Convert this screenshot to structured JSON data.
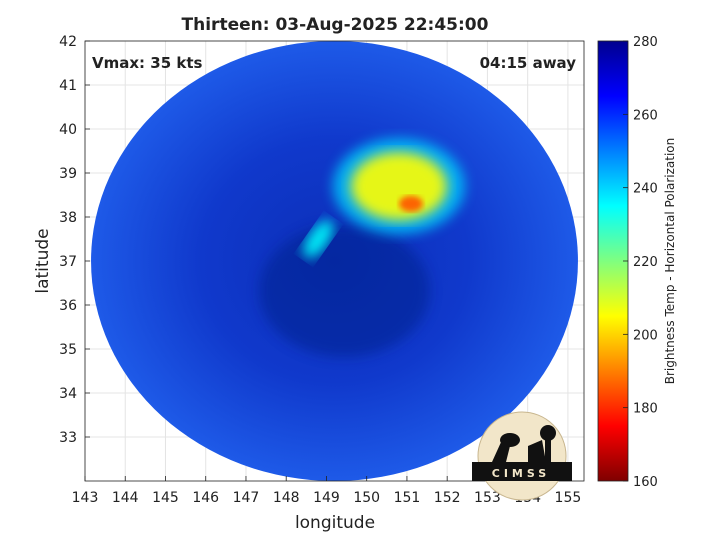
{
  "title": "Thirteen: 03-Aug-2025 22:45:00",
  "vmax_label": "Vmax: 35 kts",
  "away_label": "04:15 away",
  "logo_text": "CIMSS",
  "chart_data": {
    "type": "heatmap",
    "xlabel": "longitude",
    "ylabel": "latitude",
    "xlim": [
      143,
      155.4
    ],
    "ylim": [
      32,
      42
    ],
    "x_ticks": [
      143,
      144,
      145,
      146,
      147,
      148,
      149,
      150,
      151,
      152,
      153,
      154,
      155
    ],
    "y_ticks": [
      33,
      34,
      35,
      36,
      37,
      38,
      39,
      40,
      41,
      42
    ],
    "grid": true,
    "swath": {
      "center_lon": 149.2,
      "center_lat": 37.0,
      "radius_lon": 6.05,
      "radius_lat": 5.0
    },
    "colorbar": {
      "label": "Brightness Temp - Horizontal Polarization",
      "min": 160,
      "max": 280,
      "ticks": [
        160,
        180,
        200,
        220,
        240,
        260,
        280
      ]
    },
    "features": [
      {
        "name": "cold-cloud-core",
        "lon": 151.1,
        "lat": 38.3,
        "value": 185
      },
      {
        "name": "convective-area",
        "lon": 150.8,
        "lat": 38.7,
        "value": 205
      },
      {
        "name": "band-west",
        "lon": 148.8,
        "lat": 37.5,
        "value": 235
      },
      {
        "name": "background",
        "lon": 149.2,
        "lat": 37.0,
        "value": 262
      }
    ]
  }
}
